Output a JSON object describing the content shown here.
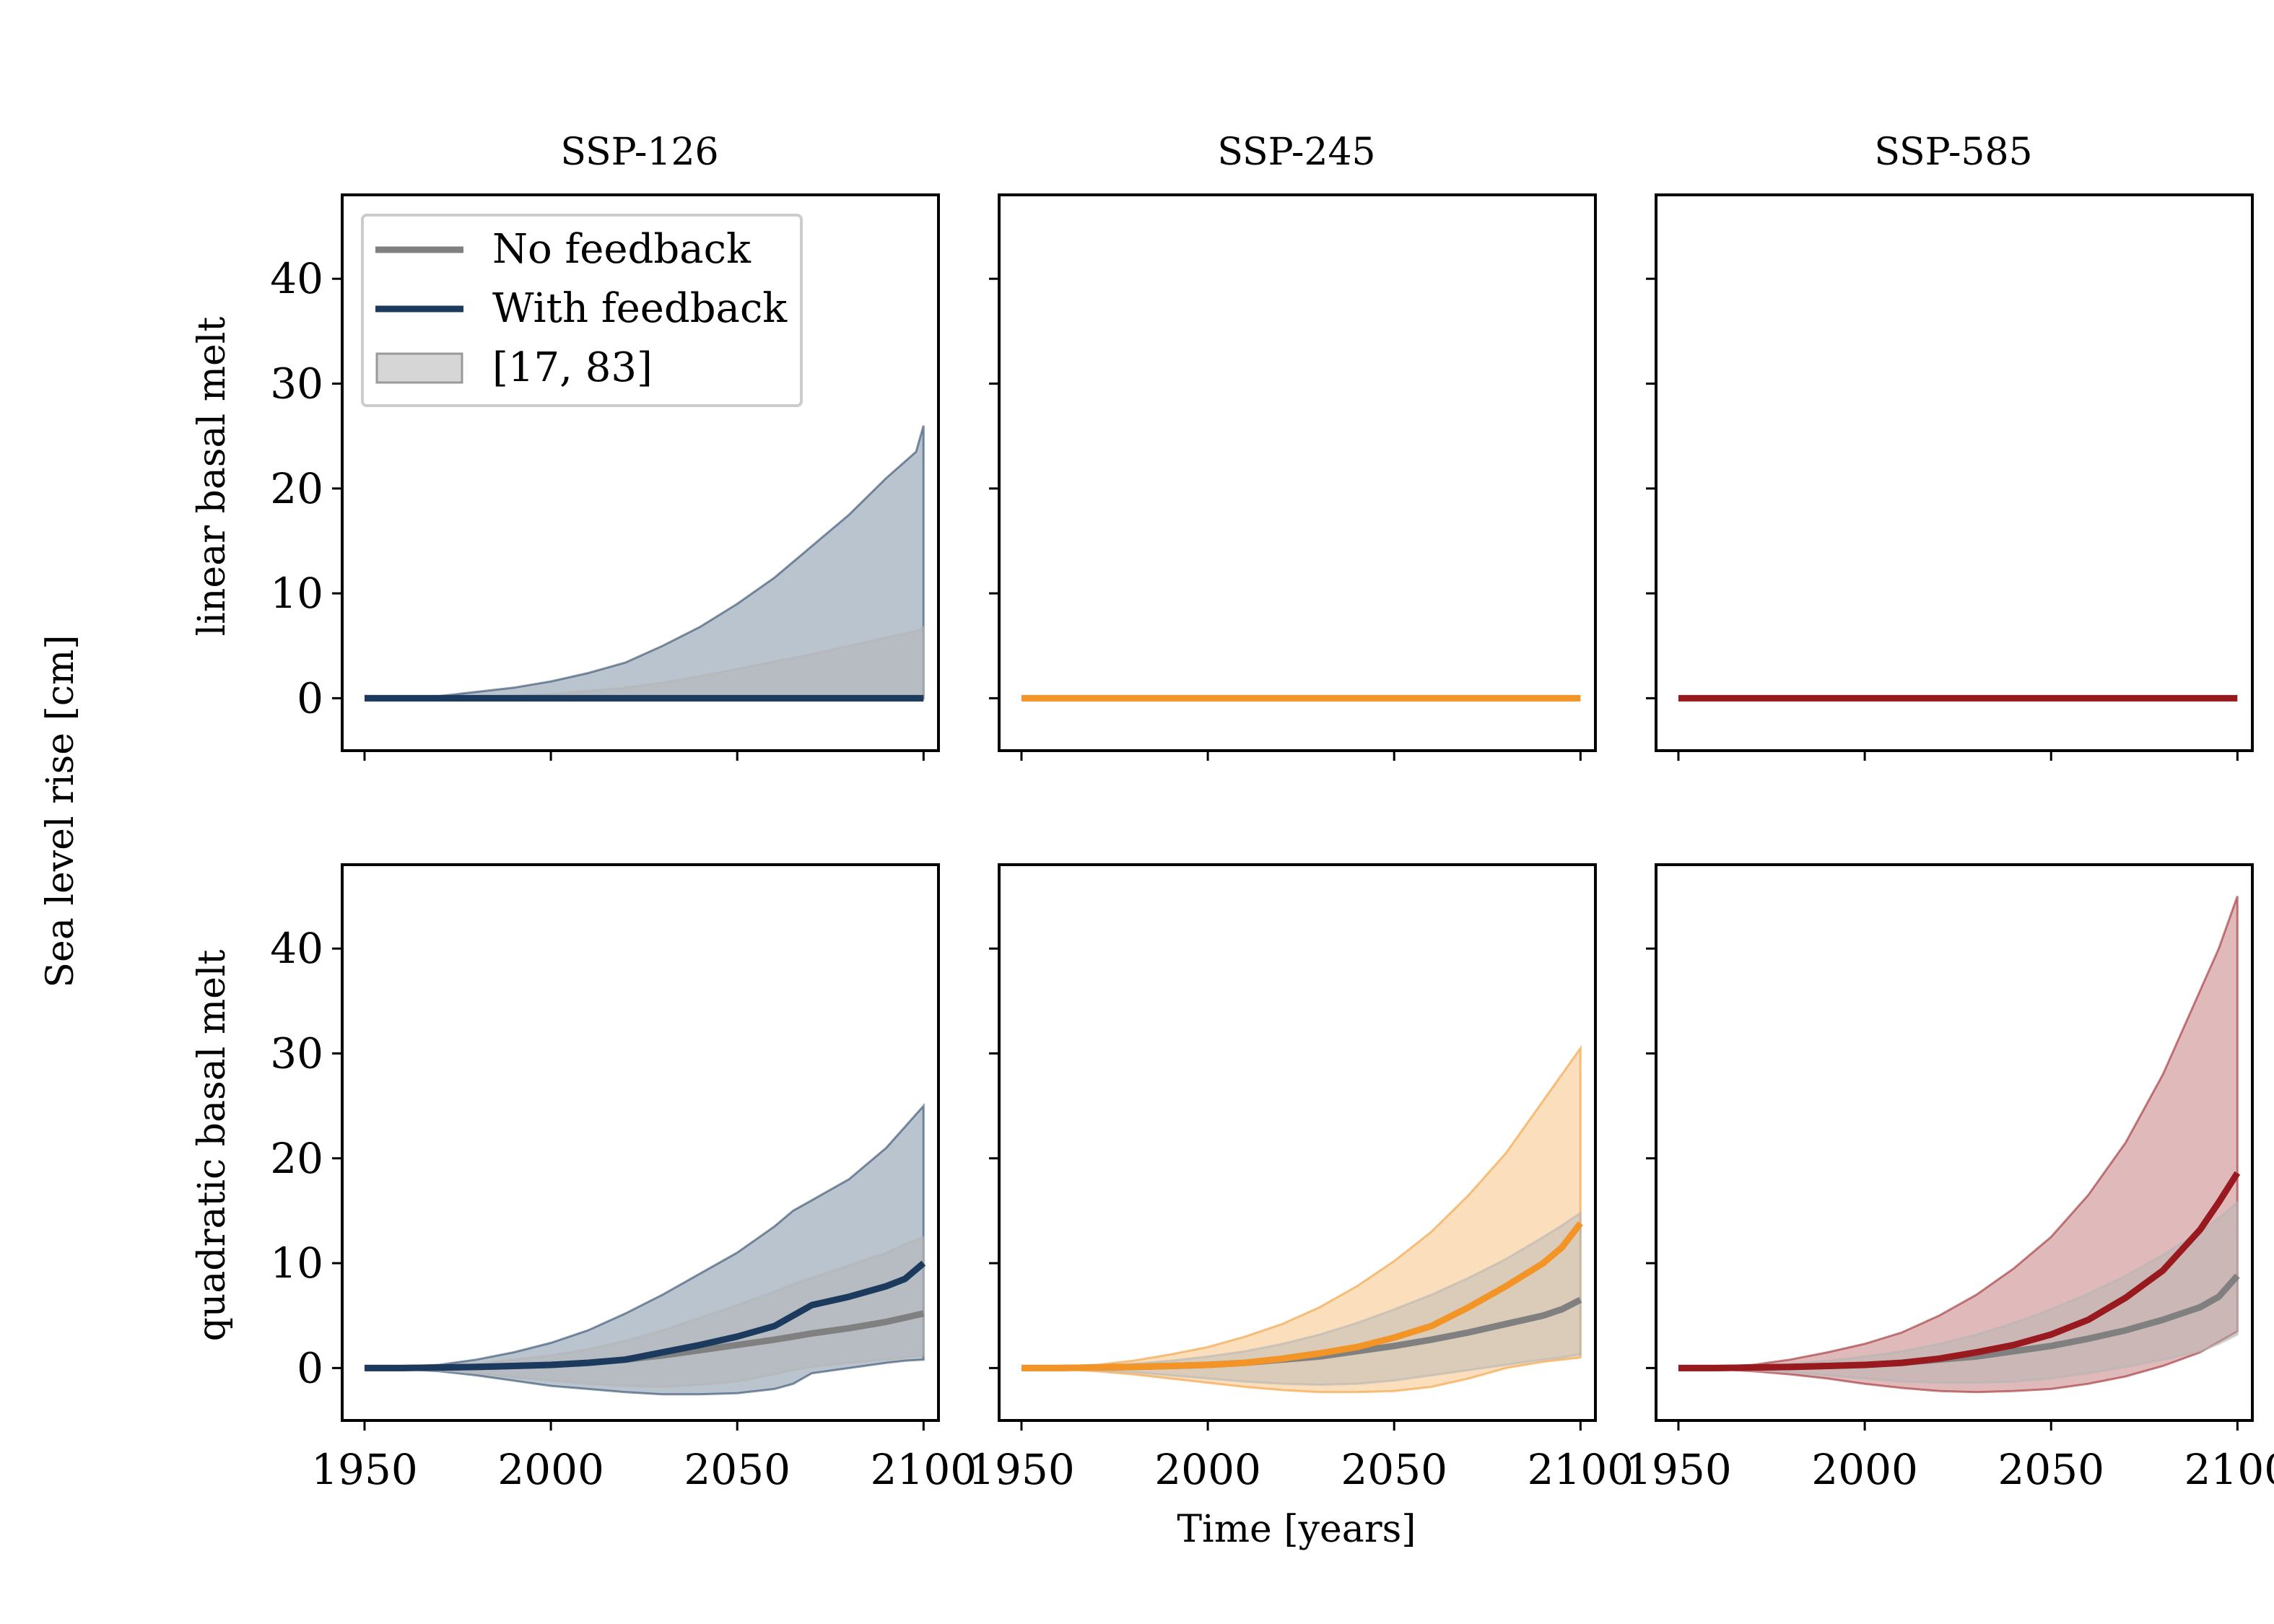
{
  "figure": {
    "ylabel": "Sea level rise [cm]",
    "xlabel": "Time [years]",
    "col_titles": [
      "SSP-126",
      "SSP-245",
      "SSP-585"
    ],
    "row_labels": [
      "linear basal melt",
      "quadratic basal melt"
    ],
    "legend": {
      "no_feedback": "No feedback",
      "with_feedback": "With feedback",
      "band": "[17, 83]"
    },
    "x_ticks": [
      "1950",
      "2000",
      "2050",
      "2100"
    ],
    "y_ticks": [
      "0",
      "10",
      "20",
      "30",
      "40"
    ]
  },
  "colors": {
    "no_feedback": "#808080",
    "band_no_feedback": "#b4b4b4",
    "SSP-126": "#1b3a5e",
    "SSP-245": "#f39426",
    "SSP-585": "#98191e"
  },
  "chart_data": [
    {
      "type": "line",
      "scenario": "SSP-126",
      "basal_melt": "linear",
      "xlim": [
        1944,
        2104
      ],
      "ylim": [
        -5,
        48
      ],
      "x": [
        1950,
        1960,
        1970,
        1980,
        1990,
        2000,
        2010,
        2020,
        2030,
        2040,
        2050,
        2060,
        2070,
        2080,
        2090,
        2098,
        2100
      ],
      "series": [
        {
          "name": "No feedback",
          "values": [
            0,
            0,
            0,
            0,
            0,
            0,
            0,
            0,
            0,
            0,
            0,
            0,
            0,
            0,
            0,
            0,
            0
          ]
        },
        {
          "name": "With feedback",
          "values": [
            0,
            0,
            0,
            0,
            0,
            0,
            0,
            0,
            0,
            0,
            0,
            0,
            0,
            0,
            0,
            0,
            0
          ]
        }
      ],
      "bands": [
        {
          "series": "With feedback",
          "upper": [
            0,
            0,
            0.2,
            0.6,
            1.0,
            1.6,
            2.4,
            3.4,
            5.0,
            6.8,
            9.0,
            11.5,
            14.5,
            17.5,
            21.0,
            23.5,
            26.0
          ],
          "lower": [
            0,
            0,
            0,
            0,
            0,
            0,
            0,
            0,
            0,
            0,
            0,
            0,
            0,
            0,
            0,
            0,
            0
          ]
        },
        {
          "series": "No feedback",
          "upper": [
            0,
            0,
            0,
            0.1,
            0.2,
            0.4,
            0.7,
            1.0,
            1.5,
            2.1,
            2.8,
            3.5,
            4.2,
            5.0,
            5.8,
            6.4,
            6.8
          ],
          "lower": [
            0,
            0,
            0,
            0,
            0,
            0,
            0,
            0,
            0,
            0,
            0,
            0,
            0,
            0,
            0,
            0,
            0
          ]
        }
      ]
    },
    {
      "type": "line",
      "scenario": "SSP-245",
      "basal_melt": "linear",
      "xlim": [
        1944,
        2104
      ],
      "ylim": [
        -5,
        48
      ],
      "x": [
        1950,
        2000,
        2050,
        2100
      ],
      "series": [
        {
          "name": "With feedback",
          "values": [
            0,
            0,
            0,
            0
          ]
        }
      ],
      "bands": []
    },
    {
      "type": "line",
      "scenario": "SSP-585",
      "basal_melt": "linear",
      "xlim": [
        1944,
        2104
      ],
      "ylim": [
        -5,
        48
      ],
      "x": [
        1950,
        2000,
        2050,
        2100
      ],
      "series": [
        {
          "name": "With feedback",
          "values": [
            0,
            0,
            0,
            0
          ]
        }
      ],
      "bands": []
    },
    {
      "type": "line",
      "scenario": "SSP-126",
      "basal_melt": "quadratic",
      "xlim": [
        1944,
        2104
      ],
      "ylim": [
        -5,
        48
      ],
      "x": [
        1950,
        1960,
        1970,
        1980,
        1990,
        2000,
        2010,
        2020,
        2030,
        2040,
        2050,
        2060,
        2065,
        2070,
        2080,
        2090,
        2095,
        2100
      ],
      "series": [
        {
          "name": "No feedback",
          "values": [
            0,
            0,
            0.05,
            0.1,
            0.2,
            0.3,
            0.5,
            0.8,
            1.2,
            1.7,
            2.2,
            2.7,
            3.0,
            3.3,
            3.8,
            4.4,
            4.8,
            5.2
          ]
        },
        {
          "name": "With feedback",
          "values": [
            0,
            0,
            0.05,
            0.1,
            0.2,
            0.3,
            0.5,
            0.8,
            1.5,
            2.2,
            3.0,
            4.0,
            5.0,
            6.0,
            6.8,
            7.8,
            8.5,
            10.0
          ]
        }
      ],
      "bands": [
        {
          "series": "With feedback",
          "upper": [
            0,
            0.1,
            0.3,
            0.8,
            1.5,
            2.4,
            3.6,
            5.2,
            7.0,
            9.0,
            11.0,
            13.5,
            15.0,
            16.0,
            18.0,
            21.0,
            23.0,
            25.0
          ],
          "lower": [
            0,
            -0.1,
            -0.3,
            -0.7,
            -1.2,
            -1.7,
            -2.0,
            -2.3,
            -2.5,
            -2.5,
            -2.4,
            -2.0,
            -1.5,
            -0.5,
            0.0,
            0.5,
            0.7,
            0.8
          ]
        },
        {
          "series": "No feedback",
          "upper": [
            0,
            0.05,
            0.2,
            0.4,
            0.8,
            1.2,
            1.8,
            2.6,
            3.6,
            4.8,
            6.0,
            7.3,
            8.0,
            8.6,
            9.8,
            11.0,
            11.8,
            12.5
          ],
          "lower": [
            0,
            -0.05,
            -0.2,
            -0.5,
            -0.9,
            -1.2,
            -1.5,
            -1.7,
            -1.8,
            -1.6,
            -1.3,
            -0.6,
            -0.2,
            0.1,
            0.5,
            0.8,
            1.0,
            1.2
          ]
        }
      ]
    },
    {
      "type": "line",
      "scenario": "SSP-245",
      "basal_melt": "quadratic",
      "xlim": [
        1944,
        2104
      ],
      "ylim": [
        -5,
        48
      ],
      "x": [
        1950,
        1960,
        1970,
        1980,
        1990,
        2000,
        2010,
        2020,
        2030,
        2040,
        2050,
        2060,
        2070,
        2080,
        2090,
        2095,
        2100
      ],
      "series": [
        {
          "name": "No feedback",
          "values": [
            0,
            0,
            0.05,
            0.1,
            0.2,
            0.3,
            0.5,
            0.8,
            1.1,
            1.6,
            2.1,
            2.7,
            3.4,
            4.2,
            5.0,
            5.6,
            6.5
          ]
        },
        {
          "name": "With feedback",
          "values": [
            0,
            0,
            0.05,
            0.1,
            0.2,
            0.3,
            0.5,
            0.9,
            1.4,
            2.0,
            2.9,
            4.0,
            5.8,
            7.8,
            10.0,
            11.5,
            13.8
          ]
        }
      ],
      "bands": [
        {
          "series": "With feedback",
          "upper": [
            0,
            0.1,
            0.3,
            0.7,
            1.3,
            2.0,
            3.0,
            4.2,
            5.8,
            7.8,
            10.2,
            13.0,
            16.5,
            20.5,
            25.5,
            28.0,
            30.5
          ],
          "lower": [
            0,
            -0.1,
            -0.3,
            -0.6,
            -1.0,
            -1.4,
            -1.8,
            -2.1,
            -2.3,
            -2.3,
            -2.2,
            -1.8,
            -1.0,
            0.0,
            0.6,
            0.8,
            1.0
          ]
        },
        {
          "series": "No feedback",
          "upper": [
            0,
            0.05,
            0.2,
            0.4,
            0.7,
            1.1,
            1.6,
            2.3,
            3.2,
            4.3,
            5.6,
            7.0,
            8.6,
            10.4,
            12.5,
            13.6,
            14.8
          ],
          "lower": [
            0,
            -0.05,
            -0.2,
            -0.4,
            -0.7,
            -1.0,
            -1.3,
            -1.5,
            -1.6,
            -1.5,
            -1.2,
            -0.7,
            -0.2,
            0.3,
            0.8,
            1.0,
            1.3
          ]
        }
      ]
    },
    {
      "type": "line",
      "scenario": "SSP-585",
      "basal_melt": "quadratic",
      "xlim": [
        1944,
        2104
      ],
      "ylim": [
        -5,
        48
      ],
      "x": [
        1950,
        1960,
        1970,
        1980,
        1990,
        2000,
        2010,
        2020,
        2030,
        2040,
        2050,
        2060,
        2070,
        2080,
        2090,
        2095,
        2100
      ],
      "series": [
        {
          "name": "No feedback",
          "values": [
            0,
            0,
            0.05,
            0.1,
            0.2,
            0.3,
            0.5,
            0.8,
            1.1,
            1.6,
            2.1,
            2.8,
            3.6,
            4.6,
            5.8,
            6.8,
            8.8
          ]
        },
        {
          "name": "With feedback",
          "values": [
            0,
            0,
            0.05,
            0.1,
            0.2,
            0.3,
            0.5,
            0.9,
            1.5,
            2.2,
            3.2,
            4.6,
            6.7,
            9.3,
            13.2,
            15.8,
            18.6
          ]
        }
      ],
      "bands": [
        {
          "series": "With feedback",
          "upper": [
            0,
            0.1,
            0.3,
            0.8,
            1.5,
            2.3,
            3.4,
            5.0,
            7.0,
            9.5,
            12.5,
            16.5,
            21.5,
            28.0,
            36.0,
            40.0,
            45.0
          ],
          "lower": [
            0,
            -0.1,
            -0.3,
            -0.6,
            -1.0,
            -1.5,
            -1.9,
            -2.2,
            -2.3,
            -2.2,
            -2.0,
            -1.5,
            -0.8,
            0.2,
            1.5,
            2.5,
            3.5
          ]
        },
        {
          "series": "No feedback",
          "upper": [
            0,
            0.05,
            0.2,
            0.4,
            0.7,
            1.1,
            1.6,
            2.3,
            3.2,
            4.3,
            5.6,
            7.1,
            8.8,
            10.8,
            13.0,
            14.3,
            15.8
          ],
          "lower": [
            0,
            -0.05,
            -0.2,
            -0.4,
            -0.7,
            -1.0,
            -1.3,
            -1.4,
            -1.4,
            -1.3,
            -1.0,
            -0.5,
            0.1,
            0.8,
            1.6,
            2.3,
            3.2
          ]
        }
      ]
    }
  ]
}
